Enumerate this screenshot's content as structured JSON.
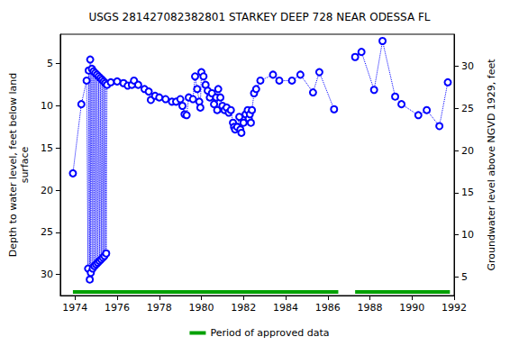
{
  "chart_data": {
    "type": "line",
    "title": "USGS 281427082382801 STARKEY DEEP 728 NEAR ODESSA FL",
    "ylabel": [
      "Depth to water level, feet below land",
      "surface"
    ],
    "y2label": "Groundwater level above NGVD 1929, feet",
    "color": "#0000ff",
    "marker": "circle",
    "line_style": "dotted",
    "grid": false,
    "legend": "bottom",
    "xlim": [
      1973.3,
      1992
    ],
    "xticks": [
      1974,
      1976,
      1978,
      1980,
      1982,
      1984,
      1986,
      1988,
      1990,
      1992
    ],
    "ylim": [
      32.5,
      1.5
    ],
    "yticks": [
      5,
      10,
      15,
      20,
      25,
      30
    ],
    "y2lim": [
      2.8,
      33.8
    ],
    "y2ticks": [
      5,
      10,
      15,
      20,
      25,
      30
    ],
    "x": [
      1973.9,
      1974.3,
      1974.55,
      1974.62,
      1974.65,
      1974.7,
      1974.72,
      1974.75,
      1974.8,
      1974.84,
      1974.88,
      1974.92,
      1974.96,
      1975.0,
      1975.04,
      1975.08,
      1975.12,
      1975.16,
      1975.2,
      1975.24,
      1975.28,
      1975.32,
      1975.36,
      1975.4,
      1975.44,
      1975.48,
      1975.52,
      1975.7,
      1976.0,
      1976.3,
      1976.5,
      1976.7,
      1976.8,
      1977.0,
      1977.3,
      1977.5,
      1977.6,
      1977.8,
      1978.0,
      1978.3,
      1978.6,
      1978.8,
      1979.0,
      1979.1,
      1979.2,
      1979.3,
      1979.4,
      1979.6,
      1979.7,
      1979.8,
      1979.9,
      1979.95,
      1980.0,
      1980.1,
      1980.2,
      1980.3,
      1980.4,
      1980.5,
      1980.6,
      1980.7,
      1980.75,
      1980.8,
      1980.9,
      1981.0,
      1981.1,
      1981.2,
      1981.3,
      1981.4,
      1981.5,
      1981.55,
      1981.6,
      1981.7,
      1981.8,
      1981.85,
      1981.9,
      1982.0,
      1982.1,
      1982.2,
      1982.25,
      1982.3,
      1982.35,
      1982.4,
      1982.5,
      1982.6,
      1982.8,
      1983.4,
      1983.7,
      1984.3,
      1984.7,
      1985.3,
      1985.6,
      1986.3,
      1986.8,
      1987.3,
      1987.6,
      1988.2,
      1988.6,
      1989.2,
      1989.5,
      1990.3,
      1990.7,
      1991.3,
      1991.7
    ],
    "values": [
      18,
      9.8,
      7,
      29.3,
      5.8,
      30.6,
      4.5,
      29.8,
      5.6,
      29.3,
      5.9,
      29.0,
      6.1,
      28.8,
      6.3,
      28.6,
      6.5,
      28.4,
      6.7,
      28.2,
      6.9,
      28.0,
      7.1,
      27.8,
      7.3,
      27.5,
      7.5,
      7.2,
      7.1,
      7.3,
      7.6,
      7.5,
      7.0,
      7.5,
      8.0,
      8.3,
      9.3,
      8.8,
      9.0,
      9.2,
      9.5,
      9.5,
      9.2,
      10.0,
      11.0,
      11.1,
      9.0,
      9.2,
      6.5,
      8.0,
      9.5,
      10.2,
      6.0,
      6.5,
      7.5,
      8.2,
      9.0,
      8.5,
      9.8,
      9.0,
      10.5,
      8.0,
      9.0,
      10.0,
      10.5,
      10.2,
      10.8,
      10.5,
      12.0,
      12.5,
      12.8,
      12.5,
      11.3,
      12.8,
      13.2,
      12.0,
      11.0,
      10.5,
      11.5,
      11.0,
      12.0,
      10.5,
      8.5,
      8.0,
      7.0,
      6.3,
      7.0,
      7.0,
      6.3,
      8.4,
      6.0,
      10.4,
      null,
      4.2,
      3.6,
      8.1,
      2.3,
      8.9,
      9.8,
      11.1,
      10.5,
      12.4,
      7.2
    ],
    "approved_periods": {
      "label": "Period of approved data",
      "color": "#00a000",
      "x": [
        [
          1973.9,
          1986.5
        ],
        [
          1987.3,
          1991.8
        ]
      ]
    }
  }
}
